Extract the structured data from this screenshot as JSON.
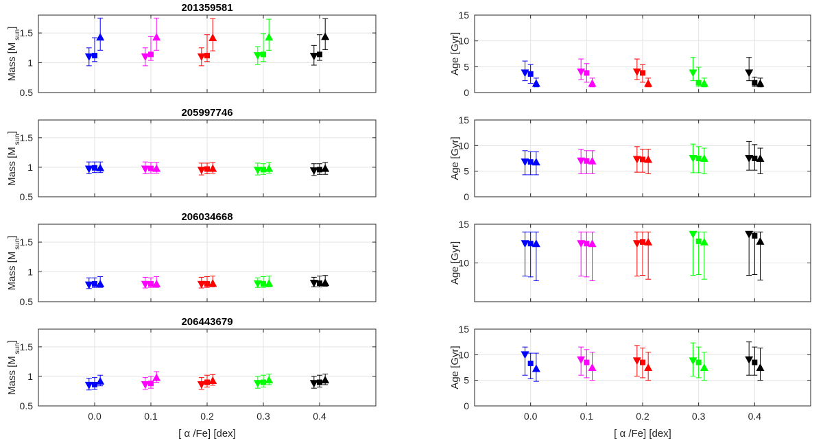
{
  "chart_data": {
    "type": "scatter",
    "figure": "Mass and age estimates versus alpha enhancement for four stars",
    "x_label": "[ α /Fe] [dex]",
    "x_ticks": [
      "0.0",
      "0.1",
      "0.2",
      "0.3",
      "0.4"
    ],
    "x_values": [
      0.0,
      0.1,
      0.2,
      0.3,
      0.4
    ],
    "xlim": [
      -0.1,
      0.5
    ],
    "series_colors": {
      "0.0": "#0000ff",
      "0.1": "#ff00ff",
      "0.2": "#ff0000",
      "0.3": "#00ff00",
      "0.4": "#000000"
    },
    "marker_types": [
      "triangle-down",
      "square",
      "triangle-up"
    ],
    "marker_offsets": [
      -0.01,
      0.0,
      0.01
    ],
    "mass_ylabel": {
      "main": "Mass [M",
      "sub": "sun",
      "close": "]"
    },
    "age_ylabel": "Age [Gyr]",
    "mass_ylim": [
      0.5,
      1.8
    ],
    "mass_yticks": [
      {
        "v": 0.5,
        "label": "0.5"
      },
      {
        "v": 1.0,
        "label": "1"
      },
      {
        "v": 1.5,
        "label": "1.5"
      }
    ],
    "age_ylim": [
      0,
      15
    ],
    "age_yticks": [
      {
        "v": 0,
        "label": "0"
      },
      {
        "v": 5,
        "label": "5"
      },
      {
        "v": 10,
        "label": "10"
      },
      {
        "v": 15,
        "label": "15"
      }
    ],
    "stars": [
      {
        "title": "201359581",
        "mass": [
          [
            [
              1.1,
              0.15,
              0.15
            ],
            [
              1.12,
              0.1,
              0.3
            ],
            [
              1.43,
              0.22,
              0.32
            ]
          ],
          [
            [
              1.1,
              0.15,
              0.15
            ],
            [
              1.14,
              0.1,
              0.3
            ],
            [
              1.43,
              0.22,
              0.32
            ]
          ],
          [
            [
              1.1,
              0.15,
              0.15
            ],
            [
              1.12,
              0.1,
              0.35
            ],
            [
              1.42,
              0.22,
              0.32
            ]
          ],
          [
            [
              1.12,
              0.15,
              0.15
            ],
            [
              1.14,
              0.12,
              0.35
            ],
            [
              1.43,
              0.22,
              0.3
            ]
          ],
          [
            [
              1.11,
              0.15,
              0.18
            ],
            [
              1.14,
              0.1,
              0.33
            ],
            [
              1.44,
              0.22,
              0.3
            ]
          ]
        ],
        "age": {
          "ylim": [
            0,
            15
          ],
          "yticks": [
            {
              "v": 0,
              "label": "0"
            },
            {
              "v": 5,
              "label": "5"
            },
            {
              "v": 10,
              "label": "10"
            },
            {
              "v": 15,
              "label": "15"
            }
          ],
          "values": [
            [
              [
                3.8,
                1.5,
                2.3
              ],
              [
                3.6,
                1.8,
                1.8
              ],
              [
                1.8,
                0.7,
                1.0
              ]
            ],
            [
              [
                4.0,
                1.5,
                2.5
              ],
              [
                3.8,
                1.8,
                1.8
              ],
              [
                1.8,
                0.7,
                1.0
              ]
            ],
            [
              [
                4.0,
                1.5,
                2.5
              ],
              [
                3.8,
                1.8,
                1.6
              ],
              [
                1.8,
                0.7,
                1.0
              ]
            ],
            [
              [
                3.8,
                1.5,
                3.0
              ],
              [
                1.9,
                0.7,
                3.0
              ],
              [
                1.8,
                0.7,
                1.0
              ]
            ],
            [
              [
                3.8,
                1.5,
                3.0
              ],
              [
                1.9,
                0.7,
                1.1
              ],
              [
                1.8,
                0.7,
                1.0
              ]
            ]
          ]
        }
      },
      {
        "title": "205997746",
        "mass": [
          [
            [
              0.97,
              0.08,
              0.12
            ],
            [
              0.99,
              0.08,
              0.1
            ],
            [
              0.99,
              0.08,
              0.1
            ]
          ],
          [
            [
              0.97,
              0.08,
              0.12
            ],
            [
              0.98,
              0.08,
              0.1
            ],
            [
              0.98,
              0.08,
              0.1
            ]
          ],
          [
            [
              0.95,
              0.08,
              0.12
            ],
            [
              0.97,
              0.08,
              0.1
            ],
            [
              0.98,
              0.08,
              0.1
            ]
          ],
          [
            [
              0.95,
              0.08,
              0.12
            ],
            [
              0.96,
              0.08,
              0.1
            ],
            [
              0.98,
              0.08,
              0.1
            ]
          ],
          [
            [
              0.94,
              0.08,
              0.12
            ],
            [
              0.96,
              0.08,
              0.1
            ],
            [
              0.98,
              0.1,
              0.1
            ]
          ]
        ],
        "age": {
          "ylim": [
            0,
            15
          ],
          "yticks": [
            {
              "v": 0,
              "label": "0"
            },
            {
              "v": 5,
              "label": "5"
            },
            {
              "v": 10,
              "label": "10"
            },
            {
              "v": 15,
              "label": "15"
            }
          ],
          "values": [
            [
              [
                6.8,
                2.5,
                2.2
              ],
              [
                6.8,
                2.5,
                2.0
              ],
              [
                6.8,
                2.5,
                2.0
              ]
            ],
            [
              [
                7.0,
                2.5,
                2.3
              ],
              [
                7.0,
                2.5,
                2.0
              ],
              [
                7.0,
                2.5,
                2.0
              ]
            ],
            [
              [
                7.3,
                2.5,
                2.5
              ],
              [
                7.3,
                2.5,
                2.0
              ],
              [
                7.3,
                2.8,
                2.0
              ]
            ],
            [
              [
                7.5,
                2.8,
                2.8
              ],
              [
                7.5,
                2.8,
                2.3
              ],
              [
                7.5,
                3.0,
                2.0
              ]
            ],
            [
              [
                7.5,
                2.3,
                3.3
              ],
              [
                7.5,
                2.3,
                2.7
              ],
              [
                7.5,
                3.0,
                2.0
              ]
            ]
          ]
        }
      },
      {
        "title": "206034668",
        "mass": [
          [
            [
              0.78,
              0.06,
              0.12
            ],
            [
              0.8,
              0.06,
              0.1
            ],
            [
              0.8,
              0.06,
              0.12
            ]
          ],
          [
            [
              0.79,
              0.06,
              0.12
            ],
            [
              0.8,
              0.06,
              0.1
            ],
            [
              0.8,
              0.06,
              0.12
            ]
          ],
          [
            [
              0.79,
              0.06,
              0.12
            ],
            [
              0.8,
              0.06,
              0.12
            ],
            [
              0.81,
              0.06,
              0.12
            ]
          ],
          [
            [
              0.8,
              0.06,
              0.1
            ],
            [
              0.8,
              0.06,
              0.12
            ],
            [
              0.81,
              0.06,
              0.12
            ]
          ],
          [
            [
              0.81,
              0.06,
              0.1
            ],
            [
              0.81,
              0.06,
              0.12
            ],
            [
              0.82,
              0.06,
              0.12
            ]
          ]
        ],
        "age": {
          "ylim": [
            5,
            15
          ],
          "yticks": [
            {
              "v": 10,
              "label": "10"
            },
            {
              "v": 15,
              "label": "15"
            }
          ],
          "values": [
            [
              [
                12.5,
                4.2,
                1.5
              ],
              [
                12.5,
                4.3,
                1.5
              ],
              [
                12.5,
                4.8,
                1.5
              ]
            ],
            [
              [
                12.5,
                4.2,
                1.5
              ],
              [
                12.5,
                4.3,
                1.5
              ],
              [
                12.5,
                4.8,
                1.5
              ]
            ],
            [
              [
                12.5,
                4.2,
                1.5
              ],
              [
                12.7,
                4.3,
                1.3
              ],
              [
                12.7,
                4.8,
                1.3
              ]
            ],
            [
              [
                13.7,
                5.3,
                0.3
              ],
              [
                12.8,
                4.3,
                1.2
              ],
              [
                12.7,
                4.8,
                1.3
              ]
            ],
            [
              [
                13.7,
                5.3,
                0.3
              ],
              [
                13.5,
                5.0,
                0.5
              ],
              [
                12.8,
                5.0,
                1.2
              ]
            ]
          ]
        }
      },
      {
        "title": "206443679",
        "mass": [
          [
            [
              0.85,
              0.08,
              0.12
            ],
            [
              0.86,
              0.08,
              0.12
            ],
            [
              0.92,
              0.08,
              0.1
            ]
          ],
          [
            [
              0.86,
              0.08,
              0.12
            ],
            [
              0.88,
              0.08,
              0.12
            ],
            [
              0.98,
              0.08,
              0.1
            ]
          ],
          [
            [
              0.86,
              0.08,
              0.12
            ],
            [
              0.9,
              0.08,
              0.12
            ],
            [
              0.93,
              0.08,
              0.1
            ]
          ],
          [
            [
              0.88,
              0.08,
              0.12
            ],
            [
              0.9,
              0.08,
              0.12
            ],
            [
              0.94,
              0.08,
              0.1
            ]
          ],
          [
            [
              0.88,
              0.08,
              0.12
            ],
            [
              0.9,
              0.08,
              0.12
            ],
            [
              0.94,
              0.08,
              0.1
            ]
          ]
        ],
        "age": {
          "ylim": [
            0,
            15
          ],
          "yticks": [
            {
              "v": 0,
              "label": "0"
            },
            {
              "v": 5,
              "label": "5"
            },
            {
              "v": 10,
              "label": "10"
            },
            {
              "v": 15,
              "label": "15"
            }
          ],
          "values": [
            [
              [
                10.0,
                4.0,
                1.5
              ],
              [
                8.3,
                3.0,
                2.0
              ],
              [
                7.3,
                2.5,
                3.0
              ]
            ],
            [
              [
                9.0,
                3.0,
                2.5
              ],
              [
                8.5,
                3.0,
                2.5
              ],
              [
                7.5,
                2.5,
                3.0
              ]
            ],
            [
              [
                8.8,
                3.0,
                3.0
              ],
              [
                8.5,
                3.0,
                2.8
              ],
              [
                7.5,
                2.5,
                3.0
              ]
            ],
            [
              [
                8.8,
                3.0,
                3.5
              ],
              [
                8.5,
                3.0,
                3.0
              ],
              [
                7.5,
                2.5,
                3.0
              ]
            ],
            [
              [
                9.0,
                3.0,
                3.5
              ],
              [
                8.5,
                2.5,
                3.0
              ],
              [
                7.5,
                2.5,
                3.8
              ]
            ]
          ]
        }
      }
    ]
  }
}
